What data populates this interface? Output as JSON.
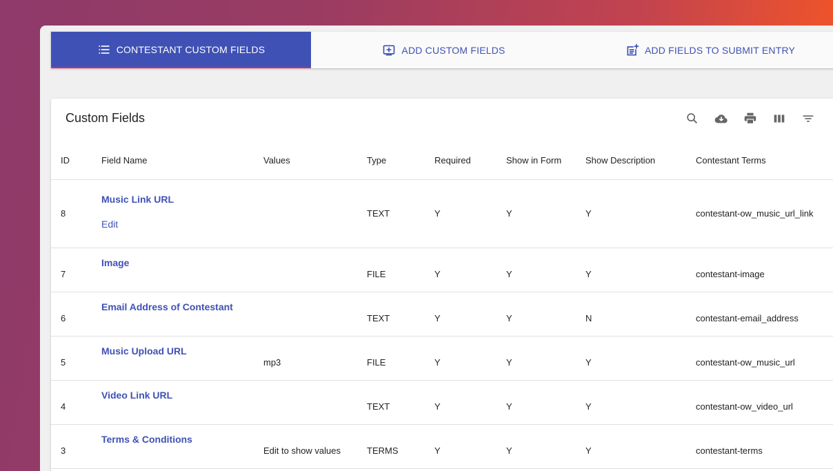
{
  "tabs": [
    {
      "label": "CONTESTANT CUSTOM FIELDS",
      "icon": "list-icon",
      "active": true
    },
    {
      "label": "ADD CUSTOM FIELDS",
      "icon": "add-box-icon",
      "active": false
    },
    {
      "label": "ADD FIELDS TO SUBMIT ENTRY",
      "icon": "post-add-icon",
      "active": false
    }
  ],
  "card": {
    "title": "Custom Fields",
    "toolbar": [
      "search-icon",
      "cloud-download-icon",
      "print-icon",
      "view-column-icon",
      "filter-icon"
    ]
  },
  "table": {
    "headers": {
      "id": "ID",
      "field_name": "Field Name",
      "values": "Values",
      "type": "Type",
      "required": "Required",
      "show_in_form": "Show in Form",
      "show_description": "Show Description",
      "contestant_terms": "Contestant Terms"
    },
    "rows": [
      {
        "id": "8",
        "field_name": "Music Link URL",
        "edit": "Edit",
        "values": "",
        "type": "TEXT",
        "required": "Y",
        "show_in_form": "Y",
        "show_description": "Y",
        "contestant_terms": "contestant-ow_music_url_link"
      },
      {
        "id": "7",
        "field_name": "Image",
        "values": "",
        "type": "FILE",
        "required": "Y",
        "show_in_form": "Y",
        "show_description": "Y",
        "contestant_terms": "contestant-image"
      },
      {
        "id": "6",
        "field_name": "Email Address of Contestant",
        "values": "",
        "type": "TEXT",
        "required": "Y",
        "show_in_form": "Y",
        "show_description": "N",
        "contestant_terms": "contestant-email_address"
      },
      {
        "id": "5",
        "field_name": "Music Upload URL",
        "values": "mp3",
        "type": "FILE",
        "required": "Y",
        "show_in_form": "Y",
        "show_description": "Y",
        "contestant_terms": "contestant-ow_music_url"
      },
      {
        "id": "4",
        "field_name": "Video Link URL",
        "values": "",
        "type": "TEXT",
        "required": "Y",
        "show_in_form": "Y",
        "show_description": "Y",
        "contestant_terms": "contestant-ow_video_url"
      },
      {
        "id": "3",
        "field_name": "Terms & Conditions",
        "values": "Edit to show values",
        "type": "TERMS",
        "required": "Y",
        "show_in_form": "Y",
        "show_description": "Y",
        "contestant_terms": "contestant-terms"
      }
    ]
  },
  "colors": {
    "primary": "#3f51b5",
    "accent": "#e91e63",
    "panel": "#f0f0f0"
  }
}
